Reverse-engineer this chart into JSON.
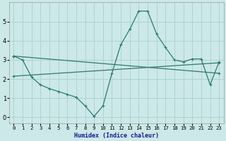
{
  "xlabel": "Humidex (Indice chaleur)",
  "bg_color": "#cce8e8",
  "grid_color": "#aacfcf",
  "line_color": "#2d7a6e",
  "xlim": [
    -0.5,
    23.5
  ],
  "ylim": [
    -0.3,
    6.0
  ],
  "yticks": [
    0,
    1,
    2,
    3,
    4,
    5
  ],
  "xtick_labels": [
    "0",
    "1",
    "2",
    "3",
    "4",
    "5",
    "6",
    "7",
    "8",
    "9",
    "10",
    "11",
    "12",
    "13",
    "14",
    "15",
    "16",
    "17",
    "18",
    "19",
    "20",
    "21",
    "22",
    "23"
  ],
  "line1_x": [
    0,
    1,
    2,
    3,
    4,
    5,
    6,
    7,
    8,
    9,
    10,
    11,
    12,
    13,
    14,
    15,
    16,
    17,
    18,
    19,
    20,
    21,
    22,
    23
  ],
  "line1_y": [
    3.2,
    3.0,
    2.1,
    1.7,
    1.5,
    1.35,
    1.2,
    1.05,
    0.6,
    0.05,
    0.6,
    2.3,
    3.8,
    4.6,
    5.55,
    5.55,
    4.35,
    3.65,
    3.0,
    2.9,
    3.05,
    3.05,
    1.7,
    2.9
  ],
  "line2_x": [
    0,
    23
  ],
  "line2_y": [
    2.15,
    2.85
  ],
  "line3_x": [
    0,
    23
  ],
  "line3_y": [
    3.2,
    2.3
  ],
  "marker_size": 3.5,
  "linewidth": 0.9,
  "xlabel_color": "#1a1a8a",
  "xlabel_fontsize": 6.0,
  "tick_fontsize": 5.2,
  "ytick_fontsize": 6.0
}
